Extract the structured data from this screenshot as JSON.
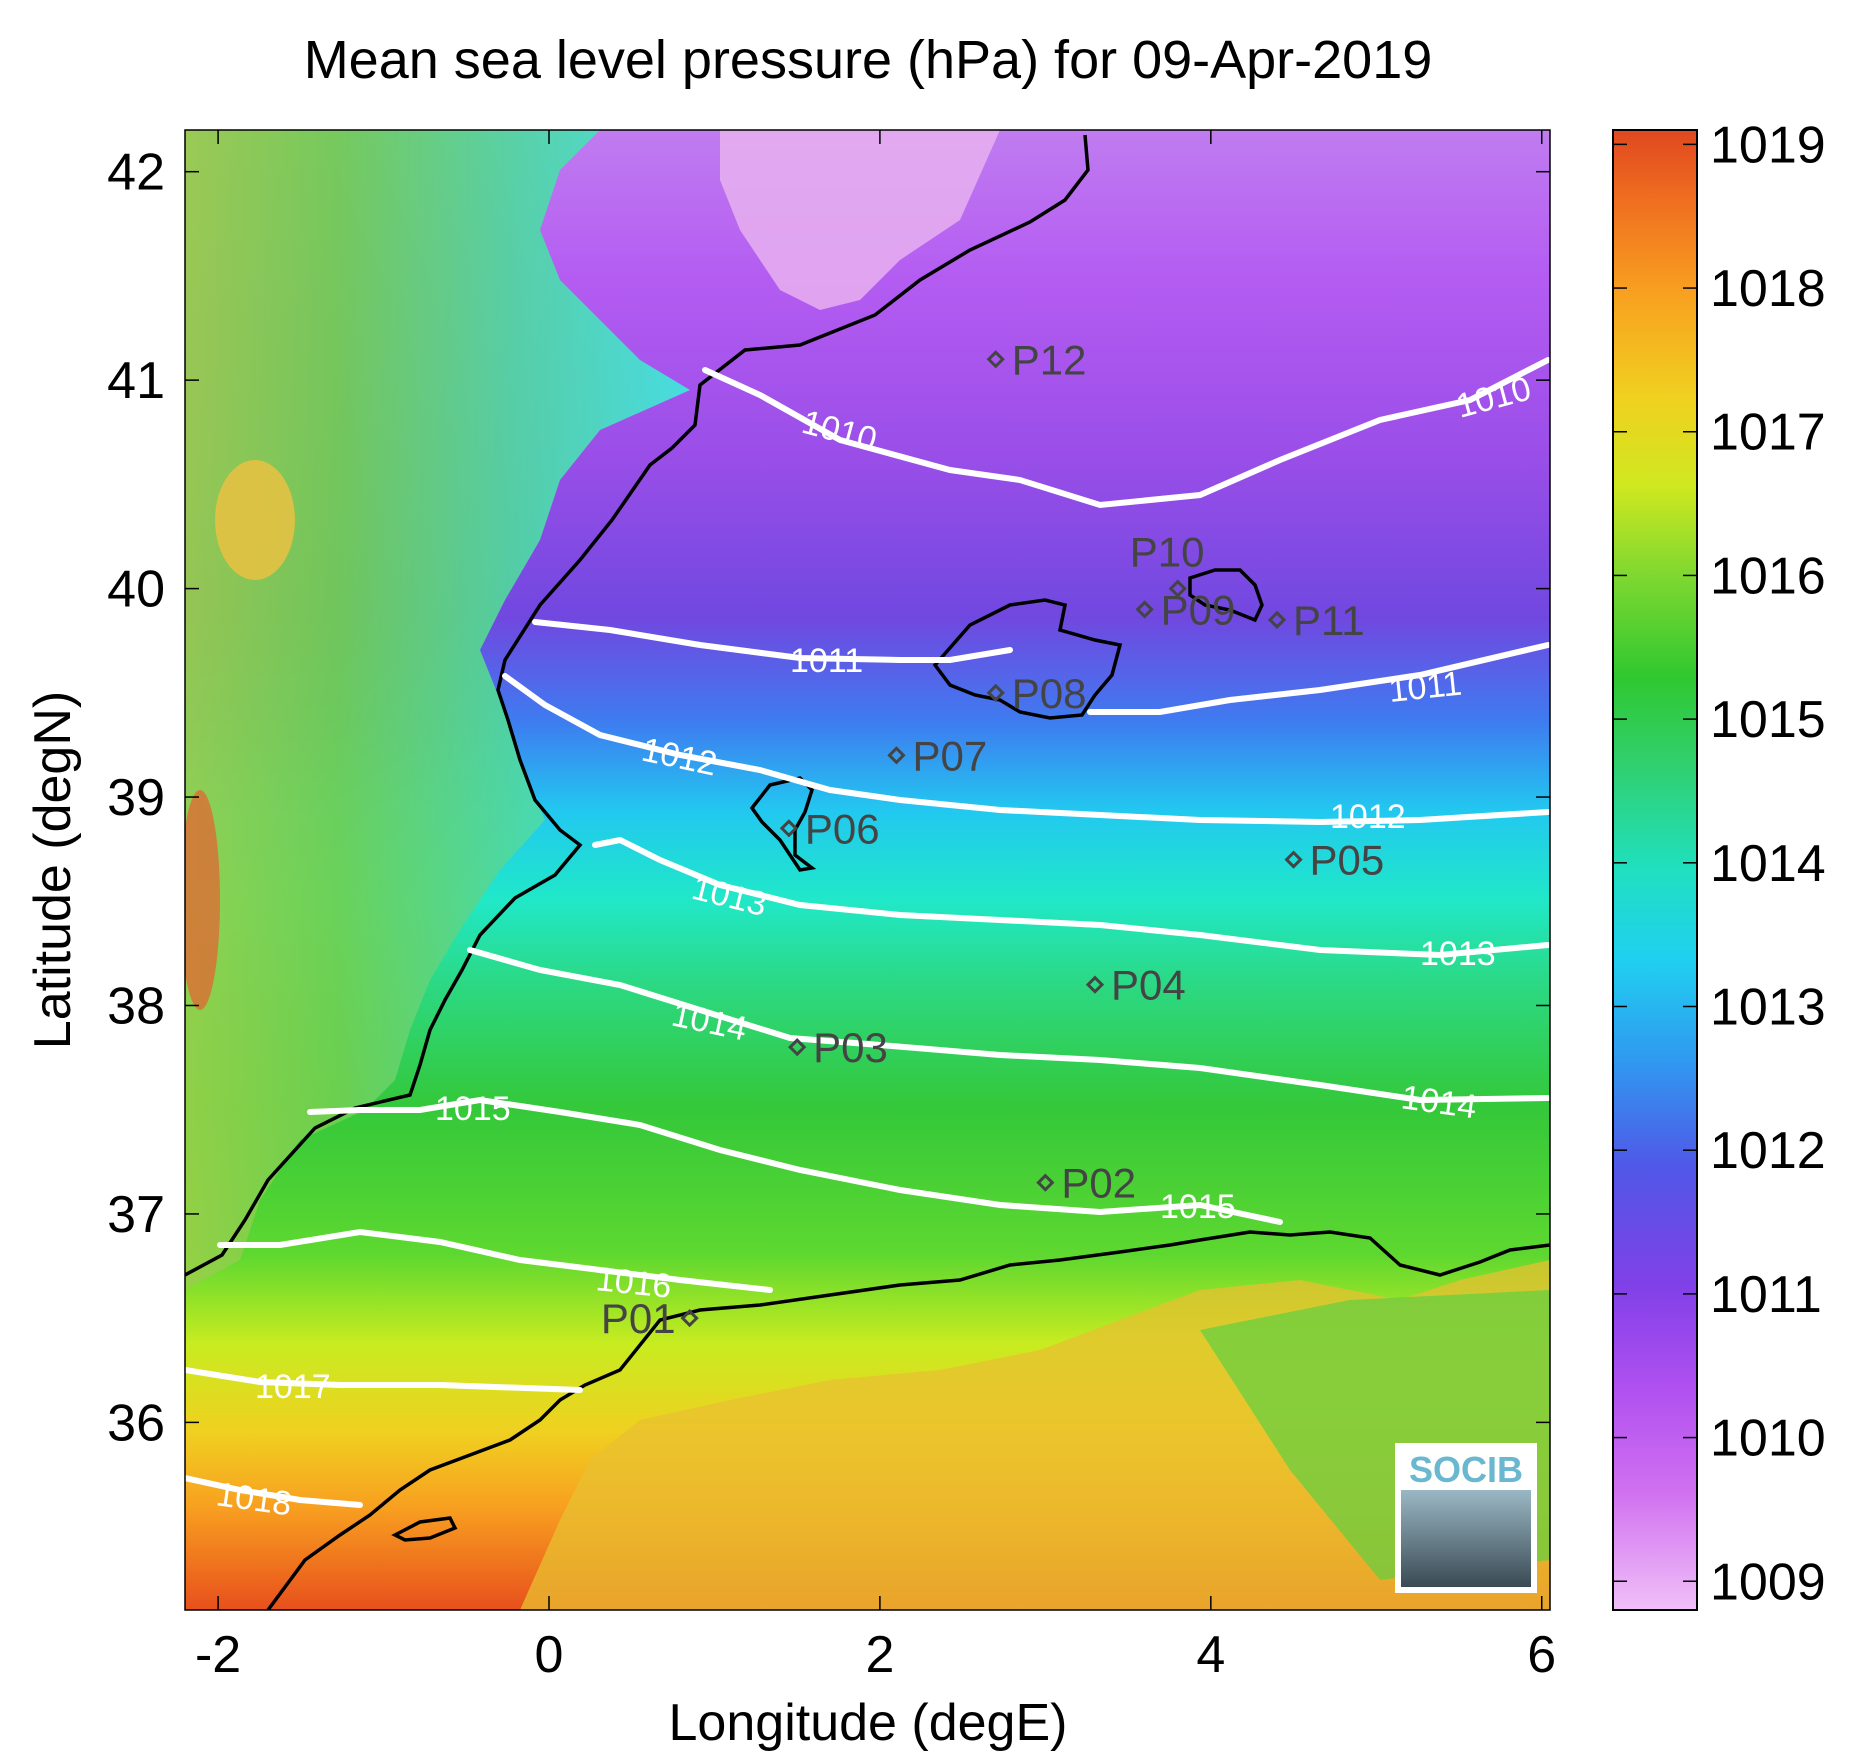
{
  "title": "Mean sea level pressure (hPa) for 09-Apr-2019",
  "x_axis": {
    "label": "Longitude (degE)",
    "ticks": [
      "-2",
      "0",
      "2",
      "4",
      "6"
    ]
  },
  "y_axis": {
    "label": "Latitude (degN)",
    "ticks": [
      "36",
      "37",
      "38",
      "39",
      "40",
      "41",
      "42"
    ]
  },
  "colorbar": {
    "ticks": [
      "1009",
      "1010",
      "1011",
      "1012",
      "1013",
      "1014",
      "1015",
      "1016",
      "1017",
      "1018",
      "1019"
    ],
    "range": [
      1008.8,
      1019.1
    ]
  },
  "contour_labels": {
    "c1010a": "1010",
    "c1010b": "1010",
    "c1011a": "1011",
    "c1011b": "1011",
    "c1012a": "1012",
    "c1012b": "1012",
    "c1013a": "1013",
    "c1013b": "1013",
    "c1014a": "1014",
    "c1014b": "1014",
    "c1015a": "1015",
    "c1015b": "1015",
    "c1016": "1016",
    "c1017": "1017",
    "c1018": "1018"
  },
  "logo_text": "SOCIB",
  "chart_data": {
    "type": "heatmap",
    "title": "Mean sea level pressure (hPa) for 09-Apr-2019",
    "xlabel": "Longitude (degE)",
    "ylabel": "Latitude (degN)",
    "xlim": [
      -2.2,
      6.05
    ],
    "ylim": [
      35.1,
      42.2
    ],
    "colorbar_range": [
      1008.8,
      1019.1
    ],
    "contour_levels": [
      1010,
      1011,
      1012,
      1013,
      1014,
      1015,
      1016,
      1017,
      1018
    ],
    "stations": [
      {
        "name": "P01",
        "lon": 0.85,
        "lat": 36.5
      },
      {
        "name": "P02",
        "lon": 3.0,
        "lat": 37.15
      },
      {
        "name": "P03",
        "lon": 1.5,
        "lat": 37.8
      },
      {
        "name": "P04",
        "lon": 3.3,
        "lat": 38.1
      },
      {
        "name": "P05",
        "lon": 4.5,
        "lat": 38.7
      },
      {
        "name": "P06",
        "lon": 1.45,
        "lat": 38.85
      },
      {
        "name": "P07",
        "lon": 2.1,
        "lat": 39.2
      },
      {
        "name": "P08",
        "lon": 2.7,
        "lat": 39.5
      },
      {
        "name": "P09",
        "lon": 3.6,
        "lat": 39.9
      },
      {
        "name": "P10",
        "lon": 3.8,
        "lat": 40.0
      },
      {
        "name": "P11",
        "lon": 4.4,
        "lat": 39.85
      },
      {
        "name": "P12",
        "lon": 2.7,
        "lat": 41.1
      }
    ]
  }
}
